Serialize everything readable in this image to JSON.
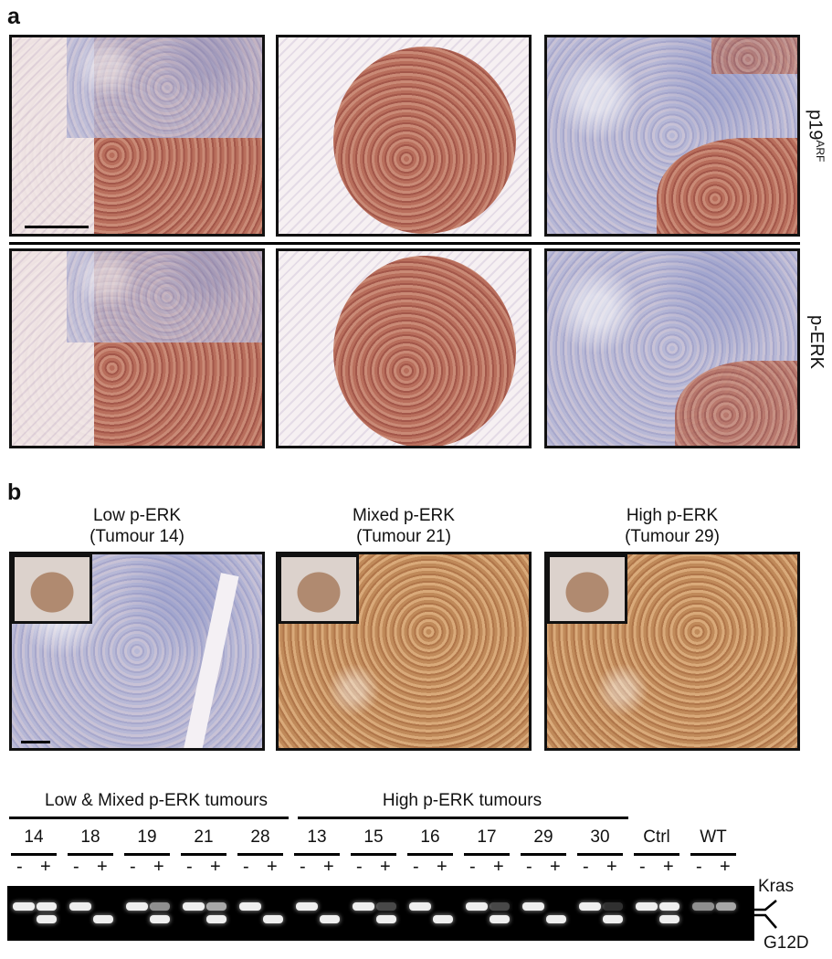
{
  "panels": {
    "a": {
      "letter": "a",
      "row_labels": [
        "p19",
        "ARF",
        "p-ERK"
      ]
    },
    "b": {
      "letter": "b",
      "titles": [
        {
          "line1": "Low p-ERK",
          "line2": "(Tumour 14)"
        },
        {
          "line1": "Mixed p-ERK",
          "line2": "(Tumour 21)"
        },
        {
          "line1": "High p-ERK",
          "line2": "(Tumour 29)"
        }
      ]
    }
  },
  "gel": {
    "group_labels": [
      "Low & Mixed p-ERK tumours",
      "High p-ERK tumours"
    ],
    "lanes": [
      "14",
      "18",
      "19",
      "21",
      "28",
      "13",
      "15",
      "16",
      "17",
      "29",
      "30",
      "Ctrl",
      "WT"
    ],
    "minus": "-",
    "plus": "+",
    "band_labels": [
      "Kras",
      "G12D"
    ]
  }
}
